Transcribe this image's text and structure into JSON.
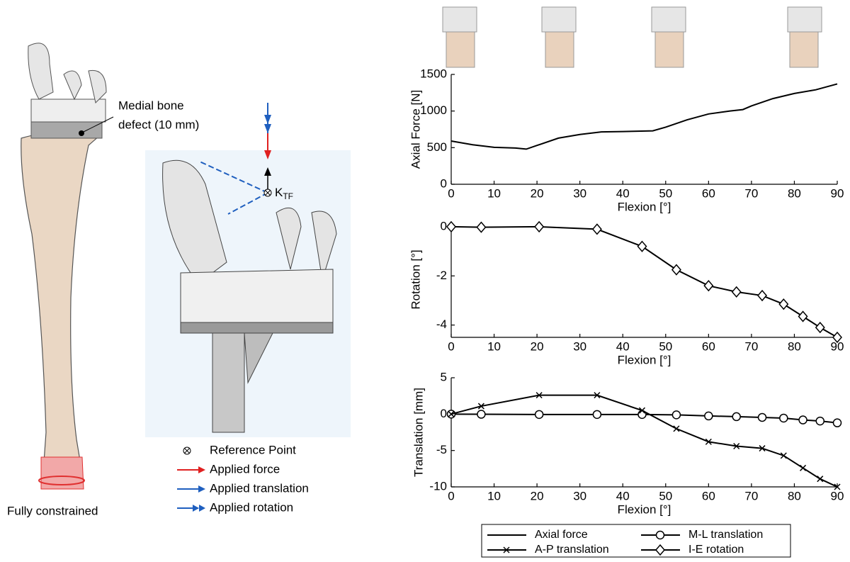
{
  "illustration": {
    "defect_label": [
      "Medial bone",
      "defect (10 mm)"
    ],
    "reference_symbol": "K",
    "reference_subscript": "TF",
    "base_label": "Fully constrained",
    "legend": [
      "Reference Point",
      "Applied force",
      "Applied translation",
      "Applied rotation"
    ]
  },
  "chart_data": [
    {
      "type": "line",
      "ylabel": "Axial Force [N]",
      "xlabel": "Flexion [°]",
      "x": [
        0,
        5,
        10,
        15,
        17.5,
        20,
        25,
        30,
        35,
        40,
        47,
        50,
        55,
        60,
        65,
        68,
        70,
        75,
        80,
        85,
        90
      ],
      "series": [
        {
          "name": "Axial force",
          "color": "#000000",
          "marker": "none",
          "values": [
            590,
            540,
            505,
            495,
            480,
            530,
            630,
            680,
            715,
            720,
            730,
            780,
            880,
            960,
            1000,
            1020,
            1070,
            1170,
            1240,
            1290,
            1370
          ]
        }
      ],
      "xlim": [
        0,
        90
      ],
      "xticks": [
        0,
        10,
        20,
        30,
        40,
        50,
        60,
        70,
        80,
        90
      ],
      "ylim": [
        0,
        1500
      ],
      "yticks": [
        0,
        500,
        1000,
        1500
      ]
    },
    {
      "type": "line",
      "ylabel": "Rotation [°]",
      "xlabel": "Flexion [°]",
      "x": [
        0,
        7,
        20.5,
        34,
        44.5,
        52.5,
        60,
        66.5,
        72.5,
        77.5,
        82,
        86,
        90
      ],
      "series": [
        {
          "name": "I-E rotation",
          "color": "#000000",
          "marker": "diamond",
          "values": [
            0,
            -0.02,
            0,
            -0.1,
            -0.8,
            -1.75,
            -2.4,
            -2.65,
            -2.8,
            -3.15,
            -3.65,
            -4.1,
            -4.5
          ]
        }
      ],
      "xlim": [
        0,
        90
      ],
      "xticks": [
        0,
        10,
        20,
        30,
        40,
        50,
        60,
        70,
        80,
        90
      ],
      "ylim": [
        -4.5,
        0.2
      ],
      "yticks": [
        -4,
        -2,
        0
      ]
    },
    {
      "type": "line",
      "ylabel": "Translation [mm]",
      "xlabel": "Flexion [°]",
      "x": [
        0,
        7,
        20.5,
        34,
        44.5,
        52.5,
        60,
        66.5,
        72.5,
        77.5,
        82,
        86,
        90
      ],
      "series": [
        {
          "name": "M-L translation",
          "color": "#000000",
          "marker": "circle",
          "values": [
            0,
            -0.02,
            -0.05,
            -0.05,
            -0.05,
            -0.1,
            -0.25,
            -0.35,
            -0.45,
            -0.55,
            -0.8,
            -0.95,
            -1.2
          ]
        },
        {
          "name": "A-P translation",
          "color": "#000000",
          "marker": "x",
          "values": [
            0,
            1.1,
            2.6,
            2.6,
            0.5,
            -2.0,
            -3.8,
            -4.4,
            -4.7,
            -5.7,
            -7.4,
            -8.9,
            -10
          ]
        }
      ],
      "xlim": [
        0,
        90
      ],
      "xticks": [
        0,
        10,
        20,
        30,
        40,
        50,
        60,
        70,
        80,
        90
      ],
      "ylim": [
        -10,
        5
      ],
      "yticks": [
        -10,
        -5,
        0,
        5
      ]
    }
  ]
}
